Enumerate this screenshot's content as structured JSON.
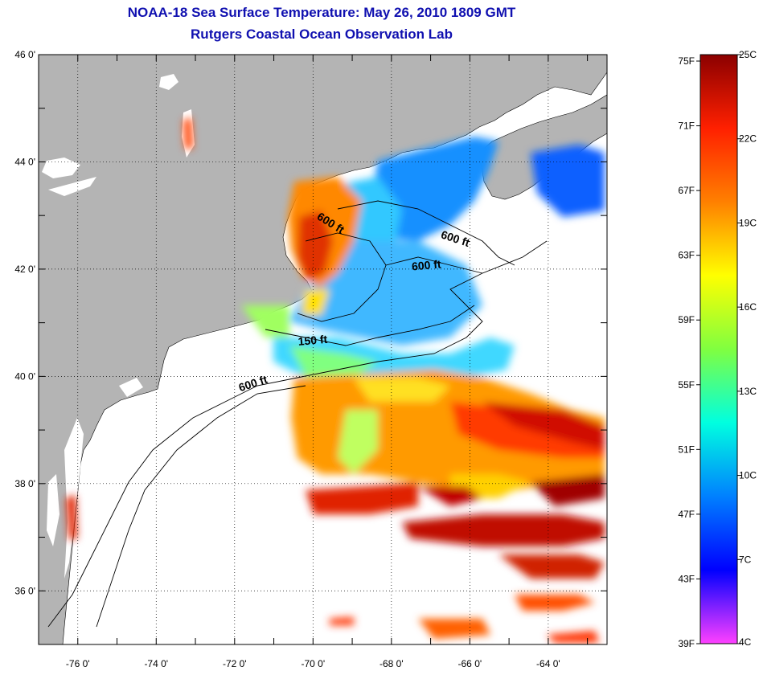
{
  "title": "NOAA-18 Sea Surface Temperature:  May 26, 2010 1809 GMT",
  "subtitle": "Rutgers Coastal Ocean Observation Lab",
  "lat_ticks": [
    {
      "value": 46,
      "label": "46 0'"
    },
    {
      "value": 44,
      "label": "44 0'"
    },
    {
      "value": 42,
      "label": "42 0'"
    },
    {
      "value": 40,
      "label": "40 0'"
    },
    {
      "value": 38,
      "label": "38 0'"
    },
    {
      "value": 36,
      "label": "36 0'"
    }
  ],
  "lon_ticks": [
    {
      "value": -76,
      "label": "-76 0'"
    },
    {
      "value": -74,
      "label": "-74 0'"
    },
    {
      "value": -72,
      "label": "-72 0'"
    },
    {
      "value": -70,
      "label": "-70 0'"
    },
    {
      "value": -68,
      "label": "-68 0'"
    },
    {
      "value": -66,
      "label": "-66 0'"
    },
    {
      "value": -64,
      "label": "-64 0'"
    }
  ],
  "contour_labels": [
    {
      "text": "600 ft",
      "lon": -69.6,
      "lat": 42.8,
      "rotate": 32
    },
    {
      "text": "600 ft",
      "lon": -66.4,
      "lat": 42.5,
      "rotate": 18
    },
    {
      "text": "600 ft",
      "lon": -67.1,
      "lat": 42.0,
      "rotate": -5
    },
    {
      "text": "150 ft",
      "lon": -70.0,
      "lat": 40.6,
      "rotate": -5
    },
    {
      "text": "600 ft",
      "lon": -71.5,
      "lat": 39.8,
      "rotate": -18
    }
  ],
  "colorbar": {
    "fahrenheit_labels": [
      "75F",
      "71F",
      "67F",
      "63F",
      "59F",
      "55F",
      "51F",
      "47F",
      "43F",
      "39F"
    ],
    "celsius_labels": [
      "25C",
      "22C",
      "19C",
      "16C",
      "13C",
      "10C",
      "7C",
      "4C"
    ],
    "colors": [
      "#8b0000",
      "#ff2000",
      "#ff8000",
      "#ffff00",
      "#80ff40",
      "#00ffe0",
      "#0080ff",
      "#0000ff",
      "#ff40ff"
    ]
  },
  "colors": {
    "land": "#b4b4b4",
    "title": "#1010b0"
  }
}
